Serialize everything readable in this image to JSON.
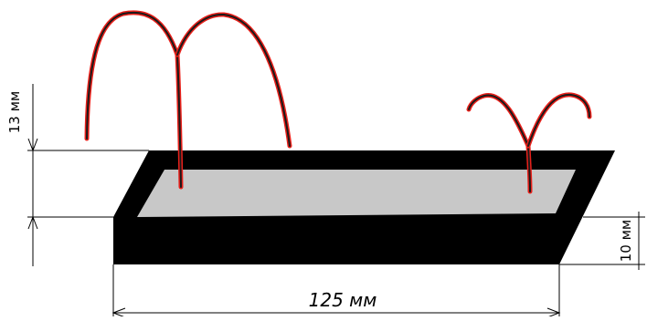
{
  "dimensions": {
    "fountain_height": "13 мм",
    "tray_depth": "10 мм",
    "tray_length": "125 мм"
  },
  "colors": {
    "tray": "#000000",
    "tray_surface": "#c8c8c8",
    "jet_outer": "#e8201a",
    "jet_inner": "#1a1a1a",
    "line": "#000000",
    "background": "#ffffff"
  }
}
